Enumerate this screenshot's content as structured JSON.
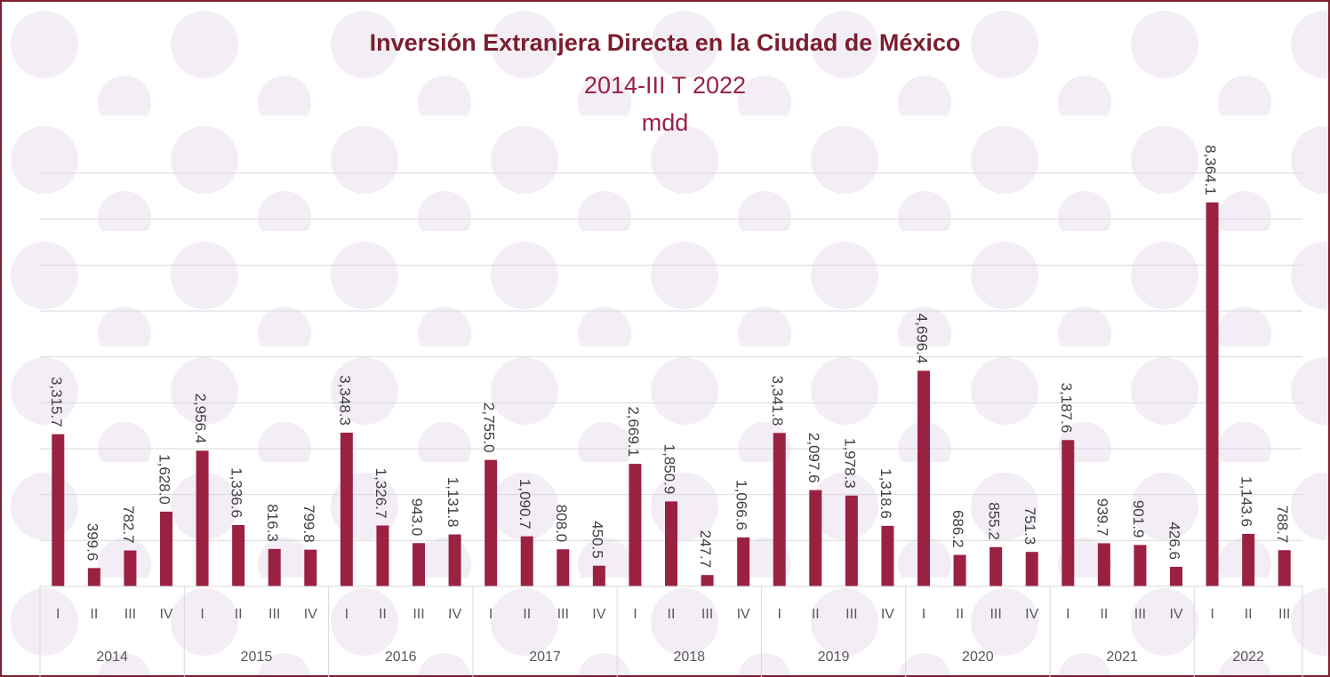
{
  "chart_data": {
    "type": "bar",
    "title": "Inversión Extranjera Directa en la Ciudad de México",
    "subtitle": "2014-III T 2022",
    "unit_label": "mdd",
    "color": "#9b2143",
    "ylim": [
      0,
      9000
    ],
    "yticks": [
      0,
      1000,
      2000,
      3000,
      4000,
      5000,
      6000,
      7000,
      8000,
      9000
    ],
    "grid": true,
    "groups": [
      {
        "name": "2014",
        "categories": [
          "I",
          "II",
          "III",
          "IV"
        ],
        "values": [
          3315.7,
          399.6,
          782.7,
          1628.0
        ],
        "value_labels": [
          "3,315.7",
          "399.6",
          "782.7",
          "1,628.0"
        ]
      },
      {
        "name": "2015",
        "categories": [
          "I",
          "II",
          "III",
          "IV"
        ],
        "values": [
          2956.4,
          1336.6,
          816.3,
          799.8
        ],
        "value_labels": [
          "2,956.4",
          "1,336.6",
          "816.3",
          "799.8"
        ]
      },
      {
        "name": "2016",
        "categories": [
          "I",
          "II",
          "III",
          "IV"
        ],
        "values": [
          3348.3,
          1326.7,
          943.0,
          1131.8
        ],
        "value_labels": [
          "3,348.3",
          "1,326.7",
          "943.0",
          "1,131.8"
        ]
      },
      {
        "name": "2017",
        "categories": [
          "I",
          "II",
          "III",
          "IV"
        ],
        "values": [
          2755.0,
          1090.7,
          808.0,
          450.5
        ],
        "value_labels": [
          "2,755.0",
          "1,090.7",
          "808.0",
          "450.5"
        ]
      },
      {
        "name": "2018",
        "categories": [
          "I",
          "II",
          "III",
          "IV"
        ],
        "values": [
          2669.1,
          1850.9,
          247.7,
          1066.6
        ],
        "value_labels": [
          "2,669.1",
          "1,850.9",
          "247.7",
          "1,066.6"
        ]
      },
      {
        "name": "2019",
        "categories": [
          "I",
          "II",
          "III",
          "IV"
        ],
        "values": [
          3341.8,
          2097.6,
          1978.3,
          1318.6
        ],
        "value_labels": [
          "3,341.8",
          "2,097.6",
          "1,978.3",
          "1,318.6"
        ]
      },
      {
        "name": "2020",
        "categories": [
          "I",
          "II",
          "III",
          "IV"
        ],
        "values": [
          4696.4,
          686.2,
          855.2,
          751.3
        ],
        "value_labels": [
          "4,696.4",
          "686.2",
          "855.2",
          "751.3"
        ]
      },
      {
        "name": "2021",
        "categories": [
          "I",
          "II",
          "III",
          "IV"
        ],
        "values": [
          3187.6,
          939.7,
          901.9,
          426.6
        ],
        "value_labels": [
          "3,187.6",
          "939.7",
          "901.9",
          "426.6"
        ]
      },
      {
        "name": "2022",
        "categories": [
          "I",
          "II",
          "III"
        ],
        "values": [
          8364.1,
          1143.6,
          788.7
        ],
        "value_labels": [
          "8,364.1",
          "1,143.6",
          "788.7"
        ]
      }
    ]
  }
}
